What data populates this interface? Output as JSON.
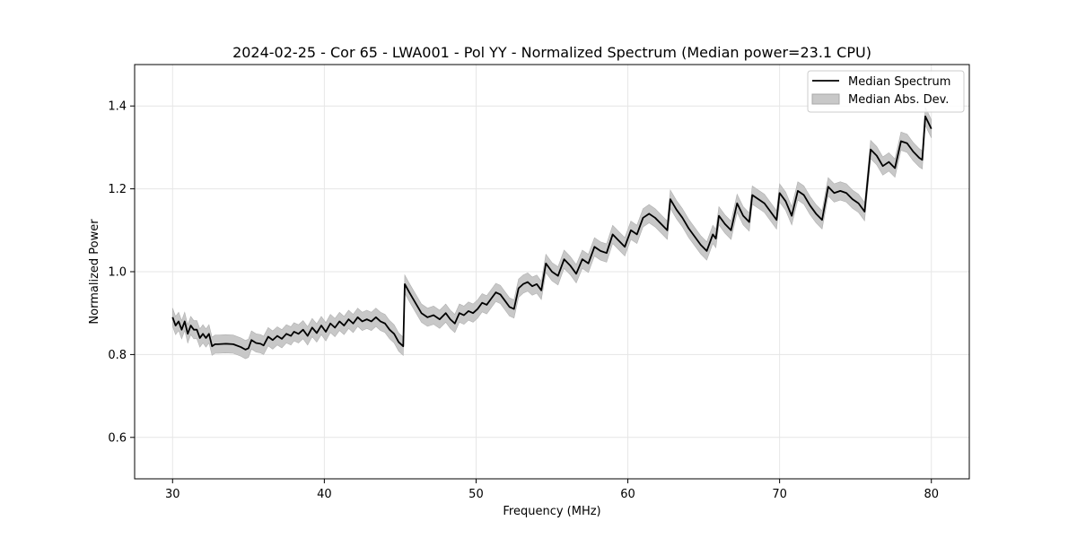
{
  "chart_data": {
    "type": "line",
    "title": "2024-02-25 - Cor 65 - LWA001 - Pol YY - Normalized Spectrum (Median power=23.1 CPU)",
    "xlabel": "Frequency (MHz)",
    "ylabel": "Normalized Power",
    "xlim": [
      27.5,
      82.5
    ],
    "ylim": [
      0.5,
      1.5
    ],
    "xticks": [
      30,
      40,
      50,
      60,
      70,
      80
    ],
    "yticks": [
      0.6,
      0.8,
      1.0,
      1.2,
      1.4
    ],
    "xtick_labels": [
      "30",
      "40",
      "50",
      "60",
      "70",
      "80"
    ],
    "ytick_labels": [
      "0.6",
      "0.8",
      "1.0",
      "1.2",
      "1.4"
    ],
    "grid": true,
    "legend_position": "top-right",
    "series": [
      {
        "name": "Median Spectrum",
        "color": "#000000",
        "x": [
          30.0,
          30.2,
          30.4,
          30.6,
          30.8,
          31.0,
          31.2,
          31.4,
          31.6,
          31.8,
          32.0,
          32.2,
          32.4,
          32.6,
          32.8,
          33.0,
          33.5,
          34.0,
          34.5,
          34.8,
          35.0,
          35.2,
          35.5,
          35.8,
          36.0,
          36.3,
          36.6,
          36.9,
          37.2,
          37.5,
          37.8,
          38.0,
          38.3,
          38.6,
          38.9,
          39.2,
          39.5,
          39.8,
          40.1,
          40.4,
          40.7,
          41.0,
          41.3,
          41.6,
          41.9,
          42.2,
          42.5,
          42.8,
          43.1,
          43.4,
          43.7,
          44.0,
          44.3,
          44.6,
          44.9,
          45.2,
          45.3,
          45.6,
          46.0,
          46.4,
          46.8,
          47.2,
          47.6,
          48.0,
          48.3,
          48.6,
          48.9,
          49.2,
          49.5,
          49.8,
          50.1,
          50.4,
          50.7,
          51.0,
          51.3,
          51.6,
          51.9,
          52.2,
          52.5,
          52.8,
          53.1,
          53.4,
          53.7,
          54.0,
          54.3,
          54.6,
          55.0,
          55.4,
          55.8,
          56.2,
          56.6,
          57.0,
          57.4,
          57.8,
          58.2,
          58.6,
          59.0,
          59.4,
          59.8,
          60.2,
          60.6,
          61.0,
          61.4,
          61.8,
          62.2,
          62.6,
          62.8,
          63.2,
          63.6,
          64.0,
          64.4,
          64.8,
          65.2,
          65.6,
          65.8,
          66.0,
          66.4,
          66.8,
          67.2,
          67.6,
          68.0,
          68.2,
          68.6,
          69.0,
          69.4,
          69.8,
          70.0,
          70.4,
          70.8,
          71.2,
          71.6,
          72.0,
          72.4,
          72.8,
          73.2,
          73.6,
          74.0,
          74.4,
          74.8,
          75.2,
          75.6,
          76.0,
          76.4,
          76.8,
          77.2,
          77.6,
          78.0,
          78.4,
          78.8,
          79.2,
          79.4,
          79.6,
          80.0
        ],
        "y": [
          0.89,
          0.87,
          0.88,
          0.86,
          0.88,
          0.85,
          0.87,
          0.86,
          0.86,
          0.84,
          0.85,
          0.84,
          0.85,
          0.82,
          0.825,
          0.825,
          0.826,
          0.825,
          0.818,
          0.812,
          0.815,
          0.835,
          0.828,
          0.826,
          0.822,
          0.843,
          0.835,
          0.845,
          0.838,
          0.85,
          0.845,
          0.855,
          0.85,
          0.86,
          0.845,
          0.865,
          0.852,
          0.87,
          0.855,
          0.875,
          0.865,
          0.88,
          0.87,
          0.885,
          0.875,
          0.89,
          0.88,
          0.885,
          0.88,
          0.89,
          0.88,
          0.875,
          0.86,
          0.85,
          0.83,
          0.82,
          0.97,
          0.95,
          0.925,
          0.9,
          0.89,
          0.895,
          0.885,
          0.9,
          0.885,
          0.875,
          0.9,
          0.895,
          0.905,
          0.9,
          0.91,
          0.925,
          0.92,
          0.935,
          0.95,
          0.945,
          0.93,
          0.915,
          0.91,
          0.96,
          0.97,
          0.975,
          0.965,
          0.97,
          0.955,
          1.02,
          1.0,
          0.99,
          1.03,
          1.015,
          0.995,
          1.03,
          1.02,
          1.06,
          1.05,
          1.045,
          1.09,
          1.075,
          1.06,
          1.1,
          1.09,
          1.13,
          1.14,
          1.13,
          1.115,
          1.1,
          1.175,
          1.15,
          1.13,
          1.105,
          1.085,
          1.065,
          1.05,
          1.09,
          1.08,
          1.135,
          1.115,
          1.1,
          1.165,
          1.135,
          1.12,
          1.185,
          1.175,
          1.165,
          1.145,
          1.125,
          1.19,
          1.17,
          1.135,
          1.195,
          1.185,
          1.16,
          1.14,
          1.125,
          1.205,
          1.19,
          1.195,
          1.19,
          1.175,
          1.165,
          1.145,
          1.295,
          1.28,
          1.255,
          1.265,
          1.25,
          1.315,
          1.31,
          1.29,
          1.275,
          1.27,
          1.375,
          1.345
        ]
      },
      {
        "name": "Median Abs. Dev.",
        "color": "#c8c8c8",
        "type": "band",
        "half_width": 0.022
      }
    ]
  }
}
